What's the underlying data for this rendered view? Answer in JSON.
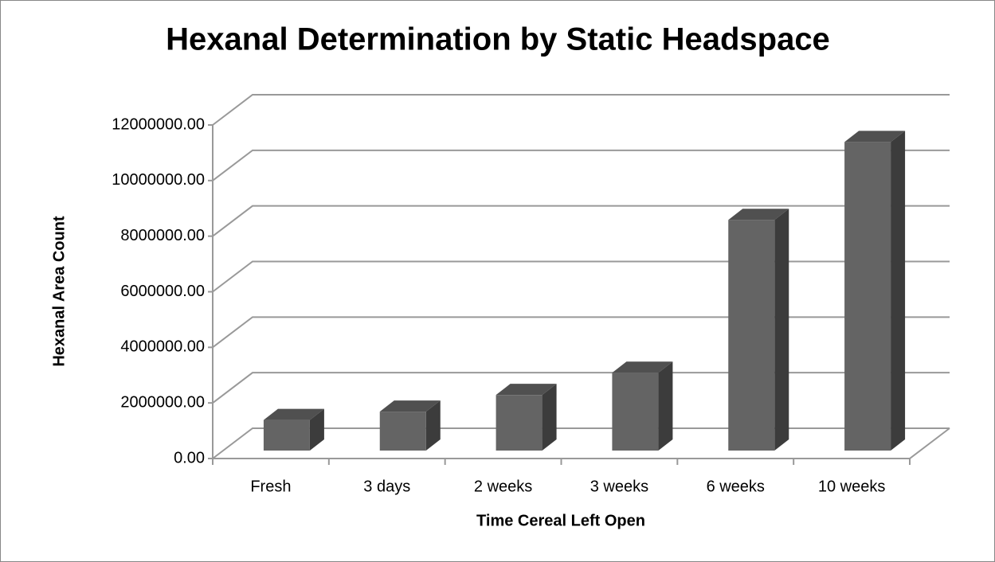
{
  "chart_data": {
    "type": "bar3d",
    "title": "Hexanal Determination by Static Headspace",
    "x_label": "Time Cereal Left Open",
    "y_label": "Hexanal Area Count",
    "categories": [
      "Fresh",
      "3 days",
      "2 weeks",
      "3 weeks",
      "6 weeks",
      "10 weeks"
    ],
    "values": [
      1100000,
      1400000,
      2000000,
      2800000,
      8300000,
      11100000
    ],
    "color": "#646464",
    "ylim": [
      0,
      12000000
    ],
    "yticks": [
      {
        "value": 0,
        "label": "0.00"
      },
      {
        "value": 2000000,
        "label": "2000000.00"
      },
      {
        "value": 4000000,
        "label": "4000000.00"
      },
      {
        "value": 6000000,
        "label": "6000000.00"
      },
      {
        "value": 8000000,
        "label": "8000000.00"
      },
      {
        "value": 10000000,
        "label": "10000000.00"
      },
      {
        "value": 12000000,
        "label": "12000000.00"
      }
    ],
    "grid": true
  }
}
